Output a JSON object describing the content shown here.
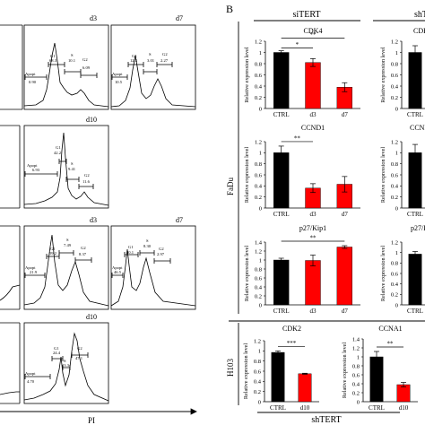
{
  "panel_b": {
    "letter": "B",
    "group_left": "siTERT",
    "group_right": "shTERT",
    "group_bottom": "shTERT",
    "row_fadu": "FaDu",
    "row_h103": "H103",
    "ylabel": "Relative expression level"
  },
  "panel_a": {
    "x_axis_label": "PI",
    "top_row": {
      "d3": {
        "label": "d3",
        "apopt": "Apopt",
        "apopt_val": "0.90",
        "g1": "G1",
        "g1_val": "68.3",
        "s": "S",
        "s_val": "10.1",
        "g2": "G2",
        "g2_val": "6.09"
      },
      "d7": {
        "label": "d7",
        "apopt": "Apopt",
        "apopt_val": "10.5",
        "g1": "G1",
        "g1_val": "12.3",
        "s": "S",
        "s_val": "3.01",
        "g2": "G2",
        "g2_val": "2.27"
      }
    },
    "second_row": {
      "d10": {
        "label": "d10",
        "apopt": "Apopt",
        "apopt_val": "6.93",
        "g1": "G1",
        "g1_val": "42.2",
        "s": "S",
        "s_val": "9.41",
        "g2": "G2",
        "g2_val": "11.6"
      }
    },
    "third_row": {
      "d3": {
        "label": "d3",
        "apopt": "Apopt",
        "apopt_val": "21.9",
        "g1": "G1",
        "g1_val": "59.2",
        "s": "S",
        "s_val": "7.49",
        "g2": "G2",
        "g2_val": "8.37"
      },
      "d7": {
        "label": "d7",
        "apopt": "Apopt",
        "apopt_val": "46.5",
        "g1": "G1",
        "g1_val": "40.1",
        "s": "S",
        "s_val": "8.30",
        "g2": "G2",
        "g2_val": "2.97"
      }
    },
    "fourth_row": {
      "d10": {
        "label": "d10",
        "apopt": "Apopt",
        "apopt_val": "4.70",
        "g1": "G1",
        "g1_val": "24.4",
        "s": "S",
        "s_val": "13.3",
        "g2": "G2",
        "g2_val": "47.1"
      }
    }
  },
  "partial_titles": {
    "cdk4": "CDK4",
    "ccnd1": "CCND1",
    "p27": "p27/Kip1"
  },
  "colors": {
    "ctrl": "#000000",
    "treated": "#ff0000",
    "axis": "#000000"
  },
  "chart_data": [
    {
      "type": "bar",
      "title": "CDK4",
      "categories": [
        "CTRL",
        "d3",
        "d7"
      ],
      "values": [
        1.0,
        0.82,
        0.38
      ],
      "errors": [
        0.03,
        0.07,
        0.08
      ],
      "ylim": [
        0,
        1.2
      ],
      "yticks": [
        "0",
        "0.2",
        "0.4",
        "0.6",
        "0.8",
        "1",
        "1.2"
      ],
      "ylabel": "Relative expression level",
      "significance": [
        {
          "from": 0,
          "to": 1,
          "label": "*"
        },
        {
          "from": 0,
          "to": 2,
          "label": "**"
        }
      ]
    },
    {
      "type": "bar",
      "title": "CCND1",
      "categories": [
        "CTRL",
        "d3",
        "d7"
      ],
      "values": [
        1.0,
        0.36,
        0.43
      ],
      "errors": [
        0.12,
        0.08,
        0.14
      ],
      "ylim": [
        0,
        1.2
      ],
      "yticks": [
        "0",
        "0.2",
        "0.4",
        "0.6",
        "0.8",
        "1",
        "1.2"
      ],
      "ylabel": "Relative expression level",
      "significance": [
        {
          "from": 0,
          "to": 1,
          "label": "**"
        }
      ]
    },
    {
      "type": "bar",
      "title": "p27/Kip1",
      "categories": [
        "CTRL",
        "d3",
        "d7"
      ],
      "values": [
        1.0,
        0.99,
        1.29
      ],
      "errors": [
        0.04,
        0.12,
        0.03
      ],
      "ylim": [
        0,
        1.4
      ],
      "yticks": [
        "0",
        "0.2",
        "0.4",
        "0.6",
        "0.8",
        "1",
        "1.2",
        "1.4"
      ],
      "ylabel": "Relative expression level",
      "significance": [
        {
          "from": 0,
          "to": 2,
          "label": "**"
        }
      ]
    },
    {
      "type": "bar",
      "title": "CDK2",
      "categories": [
        "CTRL",
        "d10"
      ],
      "values": [
        0.97,
        0.55
      ],
      "errors": [
        0.03,
        0.01
      ],
      "ylim": [
        0,
        1.2
      ],
      "yticks": [
        "0",
        "0.2",
        "0.4",
        "0.6",
        "0.8",
        "1",
        "1.2"
      ],
      "ylabel": "Relative expression level",
      "significance": [
        {
          "from": 0,
          "to": 1,
          "label": "***"
        }
      ]
    },
    {
      "type": "bar",
      "title": "CCNA1",
      "categories": [
        "CTRL",
        "d10"
      ],
      "values": [
        1.0,
        0.38
      ],
      "errors": [
        0.12,
        0.05
      ],
      "ylim": [
        0,
        1.4
      ],
      "yticks": [
        "0",
        "0.2",
        "0.4",
        "0.6",
        "0.8",
        "1",
        "1.2",
        "1.4"
      ],
      "ylabel": "Relative expression level",
      "significance": [
        {
          "from": 0,
          "to": 1,
          "label": "**"
        }
      ]
    },
    {
      "type": "bar",
      "categories": [
        "CTRL"
      ],
      "values": [
        1.0
      ],
      "errors": [
        0.12
      ],
      "ylim": [
        0,
        1.2
      ],
      "yticks": [
        "0",
        "0.2",
        "0.4",
        "0.6",
        "0.8",
        "1",
        "1.2"
      ],
      "ylabel": "Relative expression level",
      "significance": []
    },
    {
      "type": "bar",
      "categories": [
        "CTRL"
      ],
      "values": [
        1.0
      ],
      "errors": [
        0.15
      ],
      "ylim": [
        0,
        1.2
      ],
      "yticks": [
        "0",
        "0.2",
        "0.4",
        "0.6",
        "0.8",
        "1",
        "1.2"
      ],
      "ylabel": "Relative expression level",
      "significance": []
    },
    {
      "type": "bar",
      "categories": [
        "CTRL"
      ],
      "values": [
        0.97
      ],
      "errors": [
        0.05
      ],
      "ylim": [
        0,
        1.2
      ],
      "yticks": [
        "0",
        "0.2",
        "0.4",
        "0.6",
        "0.8",
        "1",
        "1.2"
      ],
      "ylabel": "Relative expression level",
      "significance": []
    }
  ]
}
